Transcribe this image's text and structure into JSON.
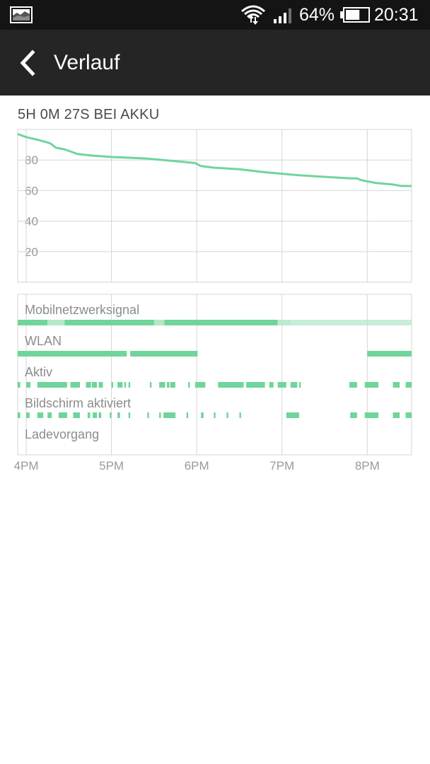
{
  "status_bar": {
    "notification_icon": "image-icon",
    "wifi_icon": "wifi-icon",
    "signal_icon": "signal-icon",
    "battery_percent": "64%",
    "battery_icon": "battery-icon",
    "battery_level": 0.64,
    "time": "20:31"
  },
  "action_bar": {
    "back_icon": "back-chevron-icon",
    "title": "Verlauf"
  },
  "duration_text": "5H 0M 27S BEI AKKU",
  "accent_color": "#6fd59a",
  "light_accent_color": "#b4e8c8",
  "chart_data": {
    "type": "line",
    "y_ticks": [
      20,
      40,
      60,
      80
    ],
    "ylim": [
      0,
      100
    ],
    "x_tick_labels": [
      "4PM",
      "5PM",
      "6PM",
      "7PM",
      "8PM"
    ],
    "x_range_hours": [
      15.9,
      20.52
    ],
    "battery_series": {
      "x": [
        15.9,
        16.0,
        16.15,
        16.28,
        16.35,
        16.45,
        16.6,
        16.75,
        17.0,
        17.4,
        17.8,
        17.98,
        18.05,
        18.2,
        18.5,
        18.8,
        19.0,
        19.2,
        19.5,
        19.8,
        19.88,
        19.92,
        20.0,
        20.1,
        20.3,
        20.4,
        20.52
      ],
      "y": [
        97,
        95,
        93,
        91,
        88,
        87,
        84,
        83,
        82,
        81,
        79,
        78,
        76,
        75,
        74,
        72,
        71,
        70,
        69,
        68,
        68,
        67,
        66,
        65,
        64,
        63,
        63
      ]
    },
    "rows": [
      {
        "label": "Mobilnetzwerksignal",
        "segments": [
          [
            15.9,
            16.25,
            1
          ],
          [
            16.25,
            16.45,
            0.7
          ],
          [
            16.45,
            17.5,
            1
          ],
          [
            17.5,
            17.62,
            0.7
          ],
          [
            17.62,
            18.95,
            1
          ],
          [
            18.95,
            19.1,
            0.6
          ],
          [
            19.1,
            20.52,
            0.45
          ]
        ]
      },
      {
        "label": "WLAN",
        "segments": [
          [
            15.9,
            17.18,
            1
          ],
          [
            17.22,
            18.01,
            1
          ],
          [
            20.0,
            20.52,
            1
          ]
        ]
      },
      {
        "label": "Aktiv",
        "segments": [
          [
            15.9,
            15.93,
            1
          ],
          [
            16.0,
            16.05,
            1
          ],
          [
            16.13,
            16.48,
            1
          ],
          [
            16.52,
            16.63,
            1
          ],
          [
            16.7,
            16.76,
            1
          ],
          [
            16.77,
            16.83,
            1
          ],
          [
            16.85,
            16.9,
            1
          ],
          [
            17.0,
            17.02,
            1
          ],
          [
            17.07,
            17.13,
            1
          ],
          [
            17.15,
            17.17,
            1
          ],
          [
            17.2,
            17.22,
            1
          ],
          [
            17.45,
            17.47,
            1
          ],
          [
            17.56,
            17.63,
            1
          ],
          [
            17.65,
            17.68,
            1
          ],
          [
            17.69,
            17.75,
            1
          ],
          [
            17.9,
            17.92,
            1
          ],
          [
            17.98,
            18.1,
            1
          ],
          [
            18.25,
            18.55,
            1
          ],
          [
            18.58,
            18.8,
            1
          ],
          [
            18.85,
            18.9,
            1
          ],
          [
            18.95,
            19.05,
            1
          ],
          [
            19.1,
            19.18,
            1
          ],
          [
            19.2,
            19.22,
            1
          ],
          [
            19.79,
            19.88,
            1
          ],
          [
            19.97,
            20.13,
            1
          ],
          [
            20.3,
            20.38,
            1
          ],
          [
            20.45,
            20.52,
            1
          ]
        ]
      },
      {
        "label": "Bildschirm aktiviert",
        "segments": [
          [
            15.9,
            15.93,
            1
          ],
          [
            16.0,
            16.04,
            1
          ],
          [
            16.13,
            16.2,
            1
          ],
          [
            16.25,
            16.3,
            1
          ],
          [
            16.38,
            16.48,
            1
          ],
          [
            16.55,
            16.63,
            1
          ],
          [
            16.72,
            16.75,
            1
          ],
          [
            16.78,
            16.83,
            1
          ],
          [
            16.85,
            16.88,
            1
          ],
          [
            16.98,
            17.0,
            1
          ],
          [
            17.07,
            17.1,
            1
          ],
          [
            17.2,
            17.22,
            1
          ],
          [
            17.42,
            17.44,
            1
          ],
          [
            17.56,
            17.58,
            1
          ],
          [
            17.61,
            17.75,
            1
          ],
          [
            17.88,
            17.9,
            1
          ],
          [
            18.05,
            18.08,
            1
          ],
          [
            18.2,
            18.22,
            1
          ],
          [
            18.35,
            18.37,
            1
          ],
          [
            18.5,
            18.52,
            1
          ],
          [
            19.05,
            19.2,
            1
          ],
          [
            19.8,
            19.88,
            1
          ],
          [
            19.97,
            20.13,
            1
          ],
          [
            20.3,
            20.38,
            1
          ],
          [
            20.45,
            20.52,
            1
          ]
        ]
      },
      {
        "label": "Ladevorgang",
        "segments": []
      }
    ]
  }
}
